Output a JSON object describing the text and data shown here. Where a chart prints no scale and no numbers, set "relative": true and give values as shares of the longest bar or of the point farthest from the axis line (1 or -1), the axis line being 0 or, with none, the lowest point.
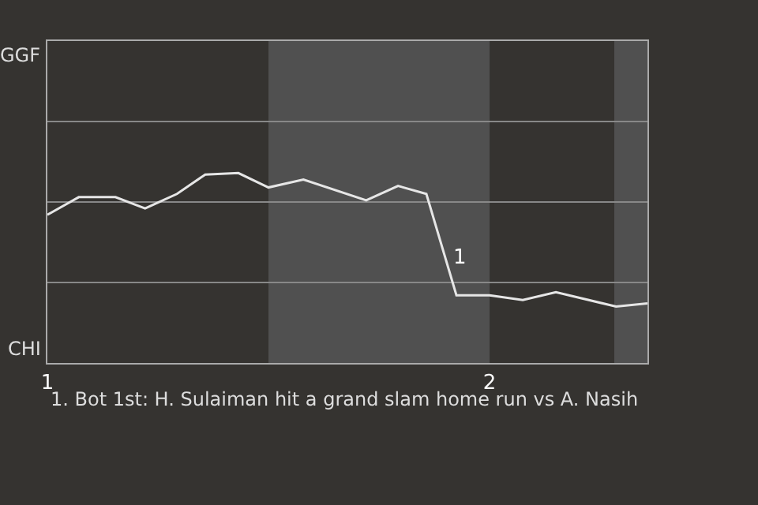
{
  "chart_data": {
    "type": "line",
    "relative": true,
    "x": [
      1,
      1.071,
      1.154,
      1.221,
      1.293,
      1.357,
      1.432,
      1.5,
      1.579,
      1.721,
      1.793,
      1.857,
      1.925,
      2,
      2.075,
      2.15,
      2.286,
      2.357
    ],
    "series": [
      {
        "color": "#e6e6e6",
        "values": [
          0.78,
          0.873,
          0.873,
          0.814,
          0.89,
          0.992,
          1,
          0.924,
          0.966,
          0.856,
          0.932,
          0.89,
          0.356,
          0.356,
          0.331,
          0.373,
          0.297,
          0.314
        ]
      }
    ],
    "xlim": [
      1,
      2.357
    ],
    "xticks": [
      1,
      2
    ],
    "marker": "none",
    "line_style": "solid",
    "ref_lines": [
      {
        "axis": "y",
        "value": 0.424,
        "color": "#888888"
      },
      {
        "axis": "y",
        "value": 0.847,
        "color": "#888888"
      },
      {
        "axis": "y",
        "value": 1.271,
        "color": "#888888"
      }
    ],
    "bands": [
      {
        "axis": "x",
        "from": 1.5,
        "to": 2,
        "color": "#505050"
      },
      {
        "axis": "x",
        "from": 2.282,
        "to": 2.357,
        "color": "#505050"
      }
    ],
    "annotations": [
      "GGF",
      "CHI",
      {
        "text": "1",
        "x": 1.9,
        "y": 0.552
      },
      "1. Bot 1st: H. Sulaiman hit a grand slam home run vs A. Nasih"
    ]
  }
}
